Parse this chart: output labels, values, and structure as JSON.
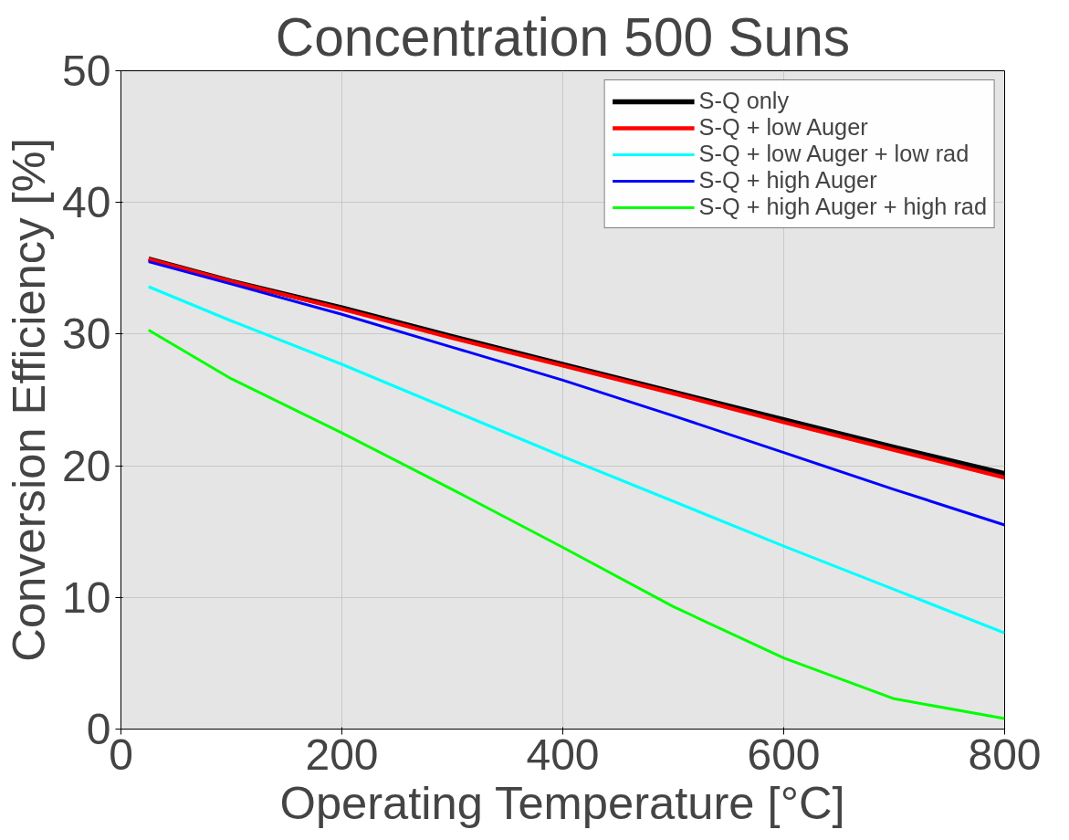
{
  "chart_data": {
    "type": "line",
    "title": "Concentration 500 Suns",
    "xlabel": "Operating Temperature [°C]",
    "ylabel": "Conversion Efficiency [%]",
    "xlim": [
      0,
      800
    ],
    "ylim": [
      0,
      50
    ],
    "xticks": [
      0,
      200,
      400,
      600,
      800
    ],
    "yticks": [
      0,
      10,
      20,
      30,
      40,
      50
    ],
    "grid": true,
    "legend": "top right",
    "marker": "none",
    "line_style": "solid",
    "x": [
      25,
      100,
      200,
      300,
      400,
      500,
      600,
      700,
      800
    ],
    "series": [
      {
        "name": "S-Q only",
        "color": "#000000",
        "values": [
          35.7,
          34.0,
          32.0,
          29.8,
          27.7,
          25.6,
          23.5,
          21.4,
          19.4
        ]
      },
      {
        "name": "S-Q + low Auger",
        "color": "#ff0000",
        "values": [
          35.7,
          34.0,
          31.9,
          29.7,
          27.6,
          25.5,
          23.3,
          21.2,
          19.1
        ]
      },
      {
        "name": "S-Q + low Auger + low rad",
        "color": "#00ffff",
        "values": [
          33.6,
          31.0,
          27.7,
          24.2,
          20.7,
          17.3,
          13.9,
          10.6,
          7.3
        ]
      },
      {
        "name": "S-Q + high Auger",
        "color": "#0000ff",
        "values": [
          35.5,
          33.8,
          31.5,
          29.0,
          26.5,
          23.8,
          21.0,
          18.2,
          15.5
        ]
      },
      {
        "name": "S-Q + high Auger + high rad",
        "color": "#00ff00",
        "values": [
          30.3,
          26.6,
          22.5,
          18.2,
          13.8,
          9.3,
          5.4,
          2.3,
          0.8
        ]
      }
    ]
  }
}
